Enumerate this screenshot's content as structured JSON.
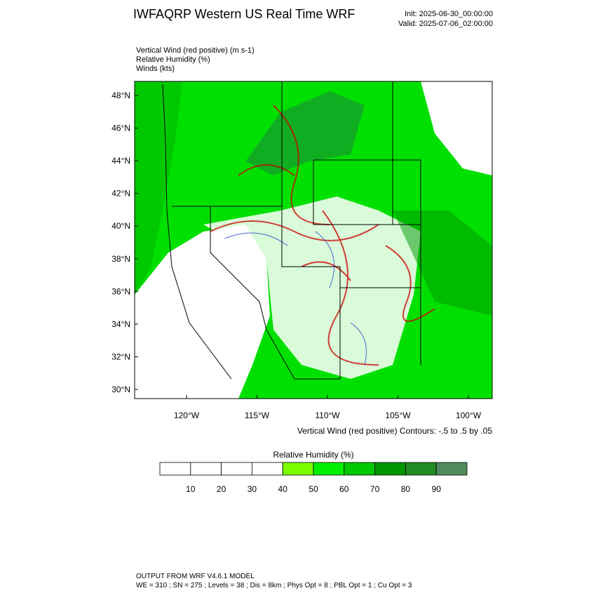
{
  "header": {
    "title": "IWFAQRP Western US Real Time WRF",
    "init": "Init: 2025-06-30_00:00:00",
    "valid": "Valid: 2025-07-06_02:00:00"
  },
  "fields": [
    "Vertical Wind (red positive)   (m s-1)",
    "Relative Humidity   (%)",
    "Winds   (kts)"
  ],
  "map": {
    "lat_labels": [
      "48°N",
      "46°N",
      "44°N",
      "42°N",
      "40°N",
      "38°N",
      "36°N",
      "34°N",
      "32°N",
      "30°N"
    ],
    "lon_labels": [
      "120°W",
      "115°W",
      "110°W",
      "105°W",
      "100°W"
    ],
    "contour_note": "Vertical Wind (red positive) Contours: -.5 to .5 by .05"
  },
  "colorbar": {
    "title": "Relative Humidity   (%)",
    "labels": [
      10,
      20,
      30,
      40,
      50,
      60,
      70,
      80,
      90
    ],
    "colors": [
      "#ffffff",
      "#ffffff",
      "#ffffff",
      "#ffffff",
      "#7cfc00",
      "#00f000",
      "#00c800",
      "#009600",
      "#228b22",
      "#4f8a5f"
    ]
  },
  "footer": {
    "line1": "OUTPUT FROM WRF V4.6.1 MODEL",
    "line2": "WE = 310 ; SN = 275 ; Levels = 38 ; Dis = 8km ; Phys Opt = 8 ; PBL Opt = 1 ; Cu Opt = 3"
  }
}
